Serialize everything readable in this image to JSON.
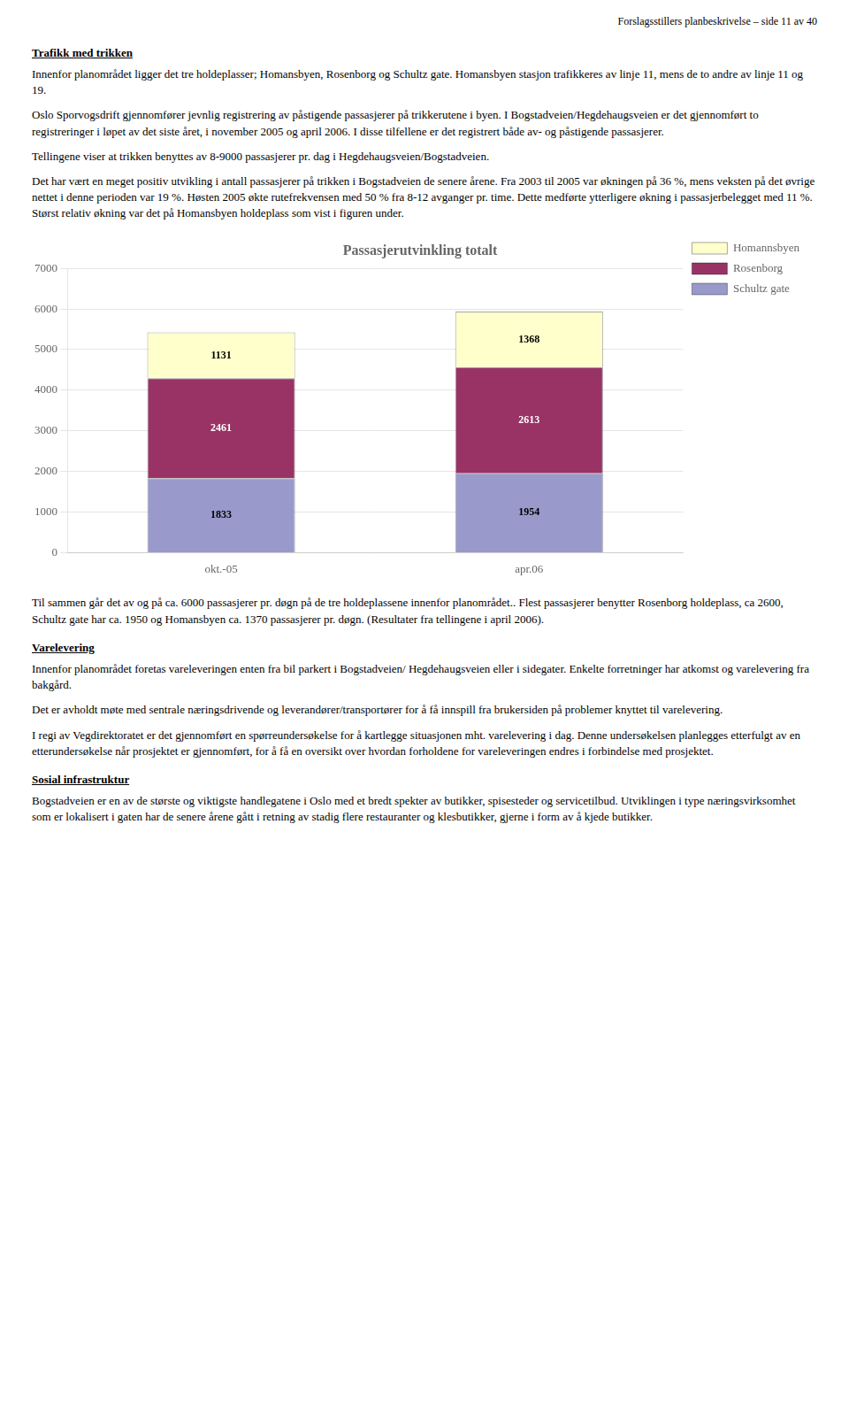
{
  "header": "Forslagsstillers planbeskrivelse – side 11 av 40",
  "before_chart": [
    {
      "heading": "Trafikk med trikken"
    },
    {
      "paragraph": "Innenfor planområdet ligger det tre holdeplasser; Homansbyen, Rosenborg og Schultz gate. Homansbyen stasjon trafikkeres av linje 11, mens de to andre av linje 11 og 19."
    },
    {
      "paragraph": "Oslo Sporvogsdrift gjennomfører jevnlig registrering av påstigende passasjerer på trikkerutene i byen. I Bogstadveien/Hegdehaugsveien er det gjennomført to registreringer i løpet av det siste året, i november 2005 og april 2006. I disse tilfellene er det registrert både av- og påstigende passasjerer."
    },
    {
      "paragraph": "Tellingene viser at trikken benyttes av 8-9000 passasjerer pr. dag i Hegdehaugsveien/Bogstadveien."
    },
    {
      "paragraph": "Det har vært en meget positiv utvikling i antall passasjerer på trikken i Bogstadveien de senere årene. Fra 2003 til 2005 var økningen på 36 %, mens veksten på det øvrige nettet i denne perioden var 19 %. Høsten 2005 økte rutefrekvensen med 50 % fra 8-12 avganger pr. time. Dette medførte ytterligere økning i passasjerbelegget med 11 %. Størst relativ økning var det på Homansbyen holdeplass som vist i figuren under."
    }
  ],
  "after_chart": [
    {
      "paragraph": "Til sammen går det av og på ca. 6000 passasjerer pr. døgn på de tre holdeplassene innenfor planområdet.. Flest passasjerer benytter Rosenborg holdeplass, ca 2600, Schultz gate har ca. 1950 og Homansbyen ca. 1370 passasjerer pr. døgn. (Resultater fra tellingene i april 2006)."
    },
    {
      "heading": "Varelevering"
    },
    {
      "paragraph": "Innenfor planområdet foretas vareleveringen enten fra bil parkert i Bogstadveien/ Hegdehaugsveien eller i sidegater. Enkelte forretninger har atkomst og varelevering fra bakgård."
    },
    {
      "paragraph": "Det er avholdt møte med sentrale næringsdrivende og leverandører/transportører for å få innspill fra brukersiden på problemer knyttet til varelevering."
    },
    {
      "paragraph": "I regi av Vegdirektoratet er det gjennomført en spørreundersøkelse for å kartlegge situasjonen mht. varelevering i dag. Denne undersøkelsen planlegges etterfulgt av en etterundersøkelse når prosjektet er gjennomført, for å få en oversikt over hvordan forholdene for vareleveringen endres i forbindelse med prosjektet."
    },
    {
      "heading": "Sosial infrastruktur"
    },
    {
      "paragraph": "Bogstadveien er en av de største og viktigste handlegatene i Oslo med et bredt spekter av butikker, spisesteder og servicetilbud. Utviklingen i type næringsvirksomhet som er lokalisert i gaten har de senere årene gått i retning av stadig flere restauranter og klesbutikker, gjerne i form av å kjede butikker."
    }
  ],
  "chart_data": {
    "type": "bar",
    "title": "Passasjerutvinkling totalt",
    "stacked": true,
    "categories": [
      "okt.-05",
      "apr.06"
    ],
    "series": [
      {
        "name": "Schultz gate",
        "color": "#9999cc",
        "values": [
          1833,
          1954
        ]
      },
      {
        "name": "Rosenborg",
        "color": "#993366",
        "values": [
          2461,
          2613
        ]
      },
      {
        "name": "Homannsbyen",
        "color": "#ffffcc",
        "values": [
          1131,
          1368
        ]
      }
    ],
    "ylim": [
      0,
      7000
    ],
    "yticks": [
      0,
      1000,
      2000,
      3000,
      4000,
      5000,
      6000,
      7000
    ],
    "grid": true,
    "legend": "right",
    "data_labels": true
  }
}
